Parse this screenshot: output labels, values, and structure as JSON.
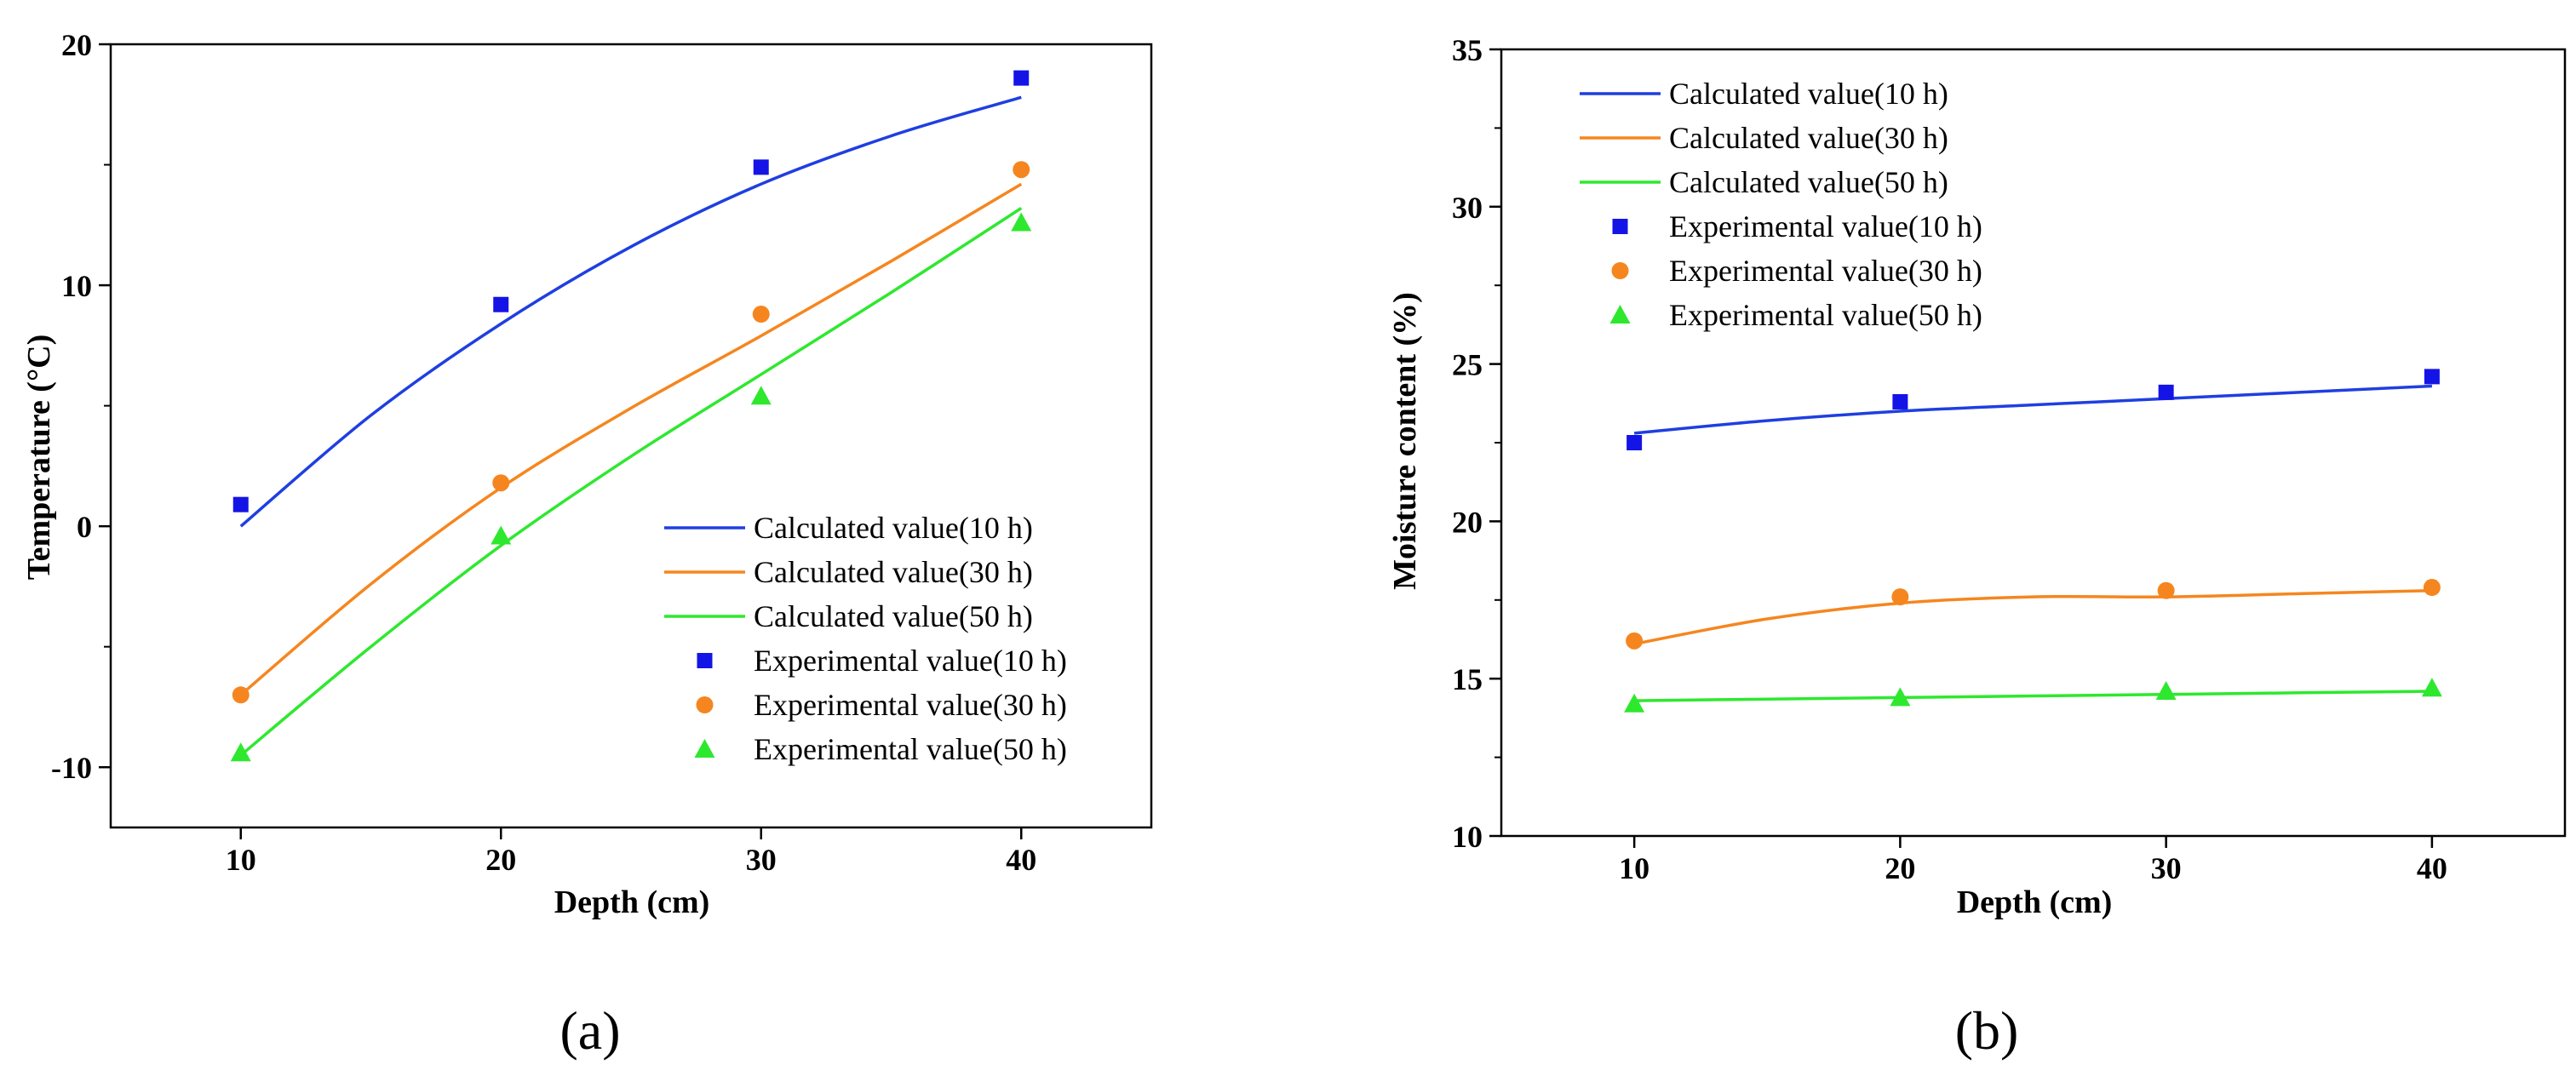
{
  "chart_data": [
    {
      "type": "line",
      "panel_label": "(a)",
      "xlabel": "Depth (cm)",
      "ylabel": "Temperature (°C)",
      "xlim": [
        5,
        45
      ],
      "ylim": [
        -12.5,
        20
      ],
      "x_ticks": [
        10,
        20,
        30,
        40
      ],
      "y_ticks": [
        -10,
        0,
        10,
        20
      ],
      "legend_position": "bottom-right",
      "series": [
        {
          "name": "Calculated value(10 h)",
          "kind": "line",
          "color": "#1f3fe0",
          "x": [
            10,
            15,
            20,
            25,
            30,
            35,
            40
          ],
          "y": [
            0,
            4.6,
            8.4,
            11.6,
            14.2,
            16.2,
            17.8
          ]
        },
        {
          "name": "Calculated value(30 h)",
          "kind": "line",
          "color": "#f5861f",
          "x": [
            10,
            15,
            20,
            25,
            30,
            35,
            40
          ],
          "y": [
            -7,
            -2.4,
            1.6,
            4.9,
            7.9,
            11.0,
            14.2
          ]
        },
        {
          "name": "Calculated value(50 h)",
          "kind": "line",
          "color": "#2ee82e",
          "x": [
            10,
            15,
            20,
            25,
            30,
            35,
            40
          ],
          "y": [
            -9.5,
            -5.0,
            -0.8,
            2.9,
            6.3,
            9.7,
            13.2
          ]
        },
        {
          "name": "Experimental value(10 h)",
          "kind": "square",
          "color": "#1414e6",
          "x": [
            10,
            20,
            30,
            40
          ],
          "y": [
            0.9,
            9.2,
            14.9,
            18.6
          ]
        },
        {
          "name": "Experimental value(30 h)",
          "kind": "circle",
          "color": "#f5861f",
          "x": [
            10,
            20,
            30,
            40
          ],
          "y": [
            -7.0,
            1.8,
            8.8,
            14.8
          ]
        },
        {
          "name": "Experimental value(50 h)",
          "kind": "triangle",
          "color": "#2ee82e",
          "x": [
            10,
            20,
            30,
            40
          ],
          "y": [
            -9.4,
            -0.4,
            5.4,
            12.6
          ]
        }
      ]
    },
    {
      "type": "line",
      "panel_label": "(b)",
      "xlabel": "Depth (cm)",
      "ylabel": "Moisture content (%)",
      "xlim": [
        5,
        45
      ],
      "ylim": [
        10,
        35
      ],
      "x_ticks": [
        10,
        20,
        30,
        40
      ],
      "y_ticks": [
        10,
        15,
        20,
        25,
        30,
        35
      ],
      "legend_position": "top-left",
      "series": [
        {
          "name": "Calculated value(10 h)",
          "kind": "line",
          "color": "#1f3fe0",
          "x": [
            10,
            15,
            20,
            25,
            30,
            35,
            40
          ],
          "y": [
            22.8,
            23.2,
            23.5,
            23.7,
            23.9,
            24.1,
            24.3
          ]
        },
        {
          "name": "Calculated value(30 h)",
          "kind": "line",
          "color": "#f5861f",
          "x": [
            10,
            15,
            20,
            25,
            30,
            35,
            40
          ],
          "y": [
            16.1,
            16.9,
            17.4,
            17.6,
            17.6,
            17.7,
            17.8
          ]
        },
        {
          "name": "Calculated value(50 h)",
          "kind": "line",
          "color": "#2ee82e",
          "x": [
            10,
            15,
            20,
            25,
            30,
            35,
            40
          ],
          "y": [
            14.3,
            14.35,
            14.4,
            14.45,
            14.5,
            14.55,
            14.6
          ]
        },
        {
          "name": "Experimental value(10 h)",
          "kind": "square",
          "color": "#1414e6",
          "x": [
            10,
            20,
            30,
            40
          ],
          "y": [
            22.5,
            23.8,
            24.1,
            24.6
          ]
        },
        {
          "name": "Experimental value(30 h)",
          "kind": "circle",
          "color": "#f5861f",
          "x": [
            10,
            20,
            30,
            40
          ],
          "y": [
            16.2,
            17.6,
            17.8,
            17.9
          ]
        },
        {
          "name": "Experimental value(50 h)",
          "kind": "triangle",
          "color": "#2ee82e",
          "x": [
            10,
            20,
            30,
            40
          ],
          "y": [
            14.2,
            14.4,
            14.6,
            14.7
          ]
        }
      ]
    }
  ]
}
